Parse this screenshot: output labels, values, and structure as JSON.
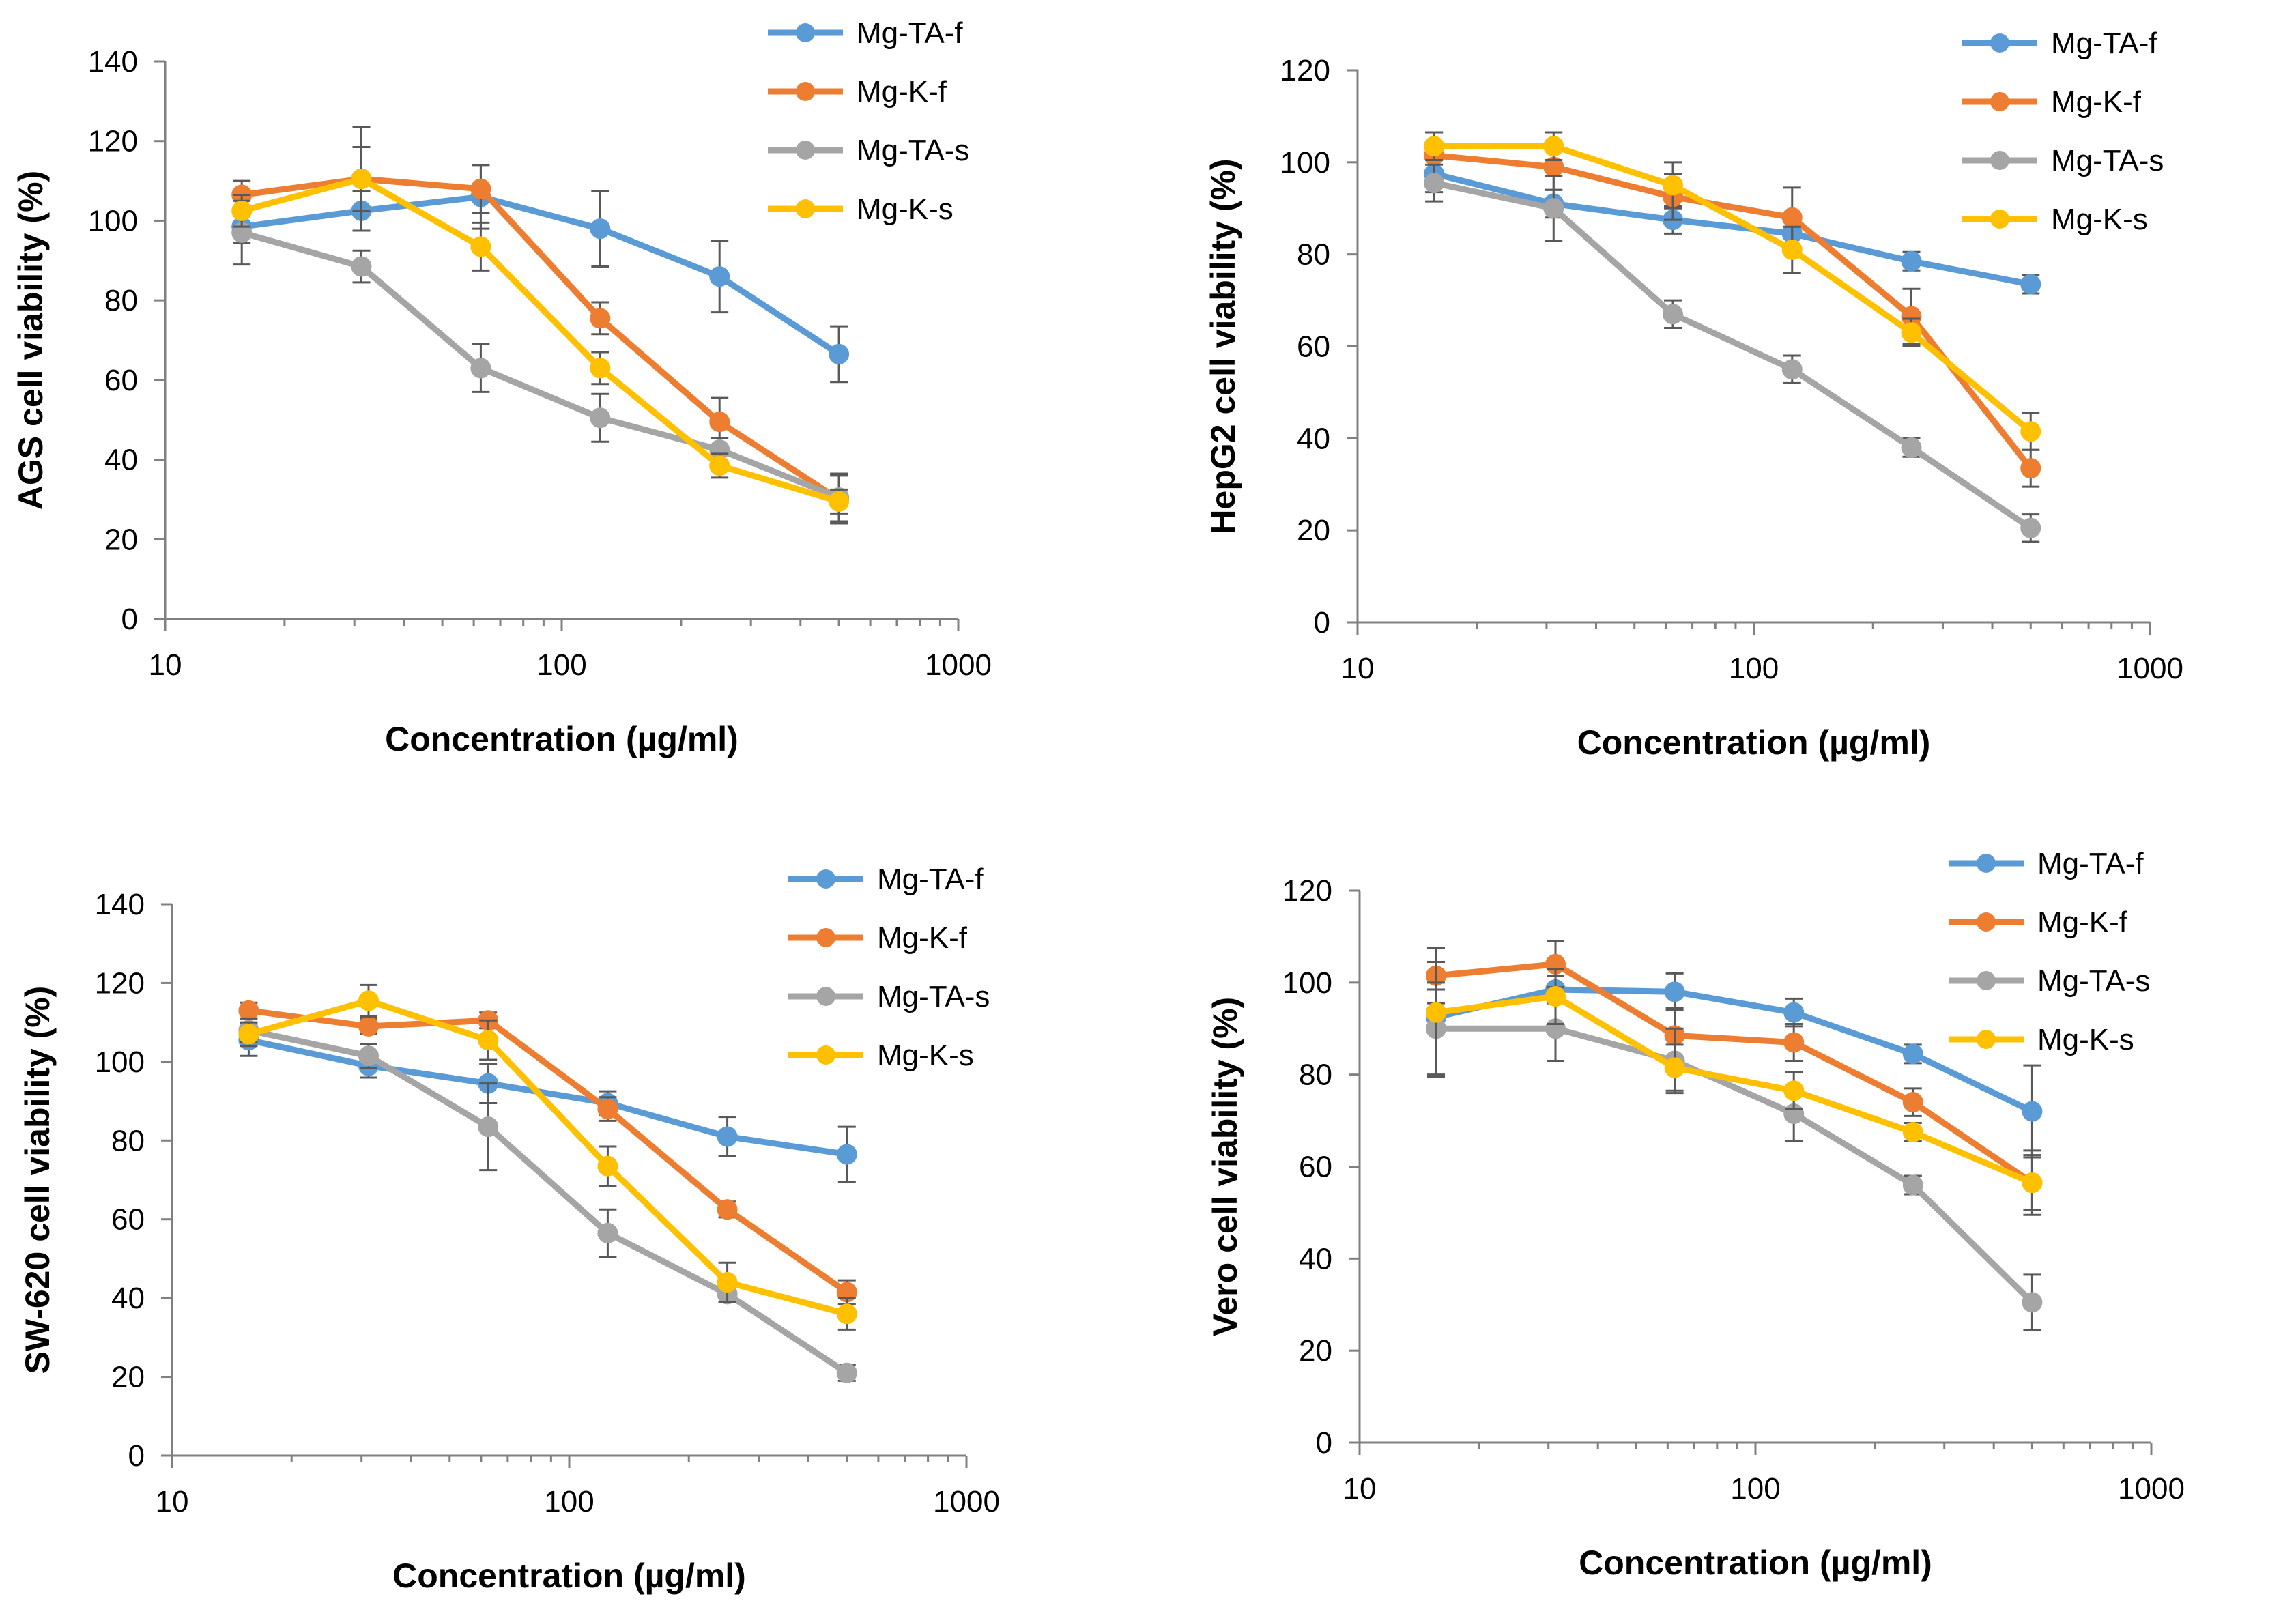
{
  "chart_data": [
    {
      "type": "line",
      "xscale": "log",
      "xlabel": "Concentration (µg/ml)",
      "ylabel": "AGS cell viability (%)",
      "xlim": [
        10,
        1000
      ],
      "ylim": [
        0,
        140
      ],
      "yticks": [
        0,
        20,
        40,
        60,
        80,
        100,
        120,
        140
      ],
      "xticks": [
        10,
        100,
        1000
      ],
      "x": [
        15.6,
        31.25,
        62.5,
        125,
        250,
        500
      ],
      "series": [
        {
          "name": "Mg-TA-f",
          "color": "#5B9BD5",
          "values": [
            98.5,
            102.5,
            106,
            98,
            86,
            66.5
          ],
          "errors": [
            4,
            5,
            8,
            9.5,
            9,
            7
          ]
        },
        {
          "name": "Mg-K-f",
          "color": "#ED7D31",
          "values": [
            106.5,
            110.5,
            108,
            75.5,
            49.5,
            30
          ],
          "errors": [
            3.5,
            8,
            6,
            4,
            6,
            6
          ]
        },
        {
          "name": "Mg-TA-s",
          "color": "#A5A5A5",
          "values": [
            97,
            88.5,
            63,
            50.5,
            42.5,
            30.5
          ],
          "errors": [
            8,
            4,
            6,
            6,
            3,
            6
          ]
        },
        {
          "name": "Mg-K-s",
          "color": "#FFC000",
          "values": [
            102.5,
            110.5,
            93.5,
            63,
            38.5,
            29.5
          ],
          "errors": [
            4,
            13,
            6,
            4,
            3,
            3
          ]
        }
      ],
      "legend": "top-right"
    },
    {
      "type": "line",
      "xscale": "log",
      "xlabel": "Concentration (µg/ml)",
      "ylabel": "HepG2 cell viability (%)",
      "xlim": [
        10,
        1000
      ],
      "ylim": [
        0,
        120
      ],
      "yticks": [
        0,
        20,
        40,
        60,
        80,
        100,
        120
      ],
      "xticks": [
        10,
        100,
        1000
      ],
      "x": [
        15.6,
        31.25,
        62.5,
        125,
        250,
        500
      ],
      "series": [
        {
          "name": "Mg-TA-f",
          "color": "#5B9BD5",
          "values": [
            97.5,
            91,
            87.5,
            84.5,
            78.5,
            73.5
          ],
          "errors": [
            4,
            3,
            3,
            3,
            2,
            2
          ]
        },
        {
          "name": "Mg-K-f",
          "color": "#ED7D31",
          "values": [
            101.5,
            99,
            92.5,
            88,
            66.5,
            33.5
          ],
          "errors": [
            5,
            5,
            5,
            6.5,
            6,
            4
          ]
        },
        {
          "name": "Mg-TA-s",
          "color": "#A5A5A5",
          "values": [
            95.5,
            90,
            67,
            55,
            38,
            20.5
          ],
          "errors": [
            4,
            7,
            3,
            3,
            2,
            3
          ]
        },
        {
          "name": "Mg-K-s",
          "color": "#FFC000",
          "values": [
            103.5,
            103.5,
            95,
            81,
            63,
            41.5
          ],
          "errors": [
            3,
            3,
            5,
            5,
            3,
            4
          ]
        }
      ],
      "legend": "top-right"
    },
    {
      "type": "line",
      "xscale": "log",
      "xlabel": "Concentration (µg/ml)",
      "ylabel": "SW-620 cell viability (%)",
      "xlim": [
        10,
        1000
      ],
      "ylim": [
        0,
        140
      ],
      "yticks": [
        0,
        20,
        40,
        60,
        80,
        100,
        120,
        140
      ],
      "xticks": [
        10,
        100,
        1000
      ],
      "x": [
        15.6,
        31.25,
        62.5,
        125,
        250,
        500
      ],
      "series": [
        {
          "name": "Mg-TA-f",
          "color": "#5B9BD5",
          "values": [
            105.5,
            99,
            94.5,
            89.5,
            81,
            76.5
          ],
          "errors": [
            4,
            3,
            5,
            3,
            5,
            7
          ]
        },
        {
          "name": "Mg-K-f",
          "color": "#ED7D31",
          "values": [
            113,
            109,
            110.5,
            88,
            62.5,
            41.5
          ],
          "errors": [
            2,
            2,
            2,
            3,
            2,
            3
          ]
        },
        {
          "name": "Mg-TA-s",
          "color": "#A5A5A5",
          "values": [
            108,
            101.5,
            83.5,
            56.5,
            41,
            21
          ],
          "errors": [
            3,
            3,
            11,
            6,
            2,
            2
          ]
        },
        {
          "name": "Mg-K-s",
          "color": "#FFC000",
          "values": [
            107,
            115.5,
            105.5,
            73.5,
            44,
            36
          ],
          "errors": [
            3,
            4,
            5,
            5,
            5,
            4
          ]
        }
      ],
      "legend": "top-right"
    },
    {
      "type": "line",
      "xscale": "log",
      "xlabel": "Concentration (µg/ml)",
      "ylabel": "Vero cell viability (%)",
      "xlim": [
        10,
        1000
      ],
      "ylim": [
        0,
        120
      ],
      "yticks": [
        0,
        20,
        40,
        60,
        80,
        100,
        120
      ],
      "xticks": [
        10,
        100,
        1000
      ],
      "x": [
        15.6,
        31.25,
        62.5,
        125,
        250,
        500
      ],
      "series": [
        {
          "name": "Mg-TA-f",
          "color": "#5B9BD5",
          "values": [
            92.5,
            98.5,
            98,
            93.5,
            84.5,
            72
          ],
          "errors": [
            3,
            3,
            4,
            3,
            2,
            10
          ]
        },
        {
          "name": "Mg-K-f",
          "color": "#ED7D31",
          "values": [
            101.5,
            104,
            88.5,
            87,
            74,
            56.5
          ],
          "errors": [
            3,
            5,
            6,
            4,
            3,
            7
          ]
        },
        {
          "name": "Mg-TA-s",
          "color": "#A5A5A5",
          "values": [
            90,
            90,
            83,
            71.5,
            56,
            30.5
          ],
          "errors": [
            10,
            7,
            7,
            6,
            2,
            6
          ]
        },
        {
          "name": "Mg-K-s",
          "color": "#FFC000",
          "values": [
            93.5,
            97,
            81.5,
            76.5,
            67.5,
            56.5
          ],
          "errors": [
            14,
            6,
            5,
            4,
            2,
            6
          ]
        }
      ],
      "legend": "top-right"
    }
  ]
}
